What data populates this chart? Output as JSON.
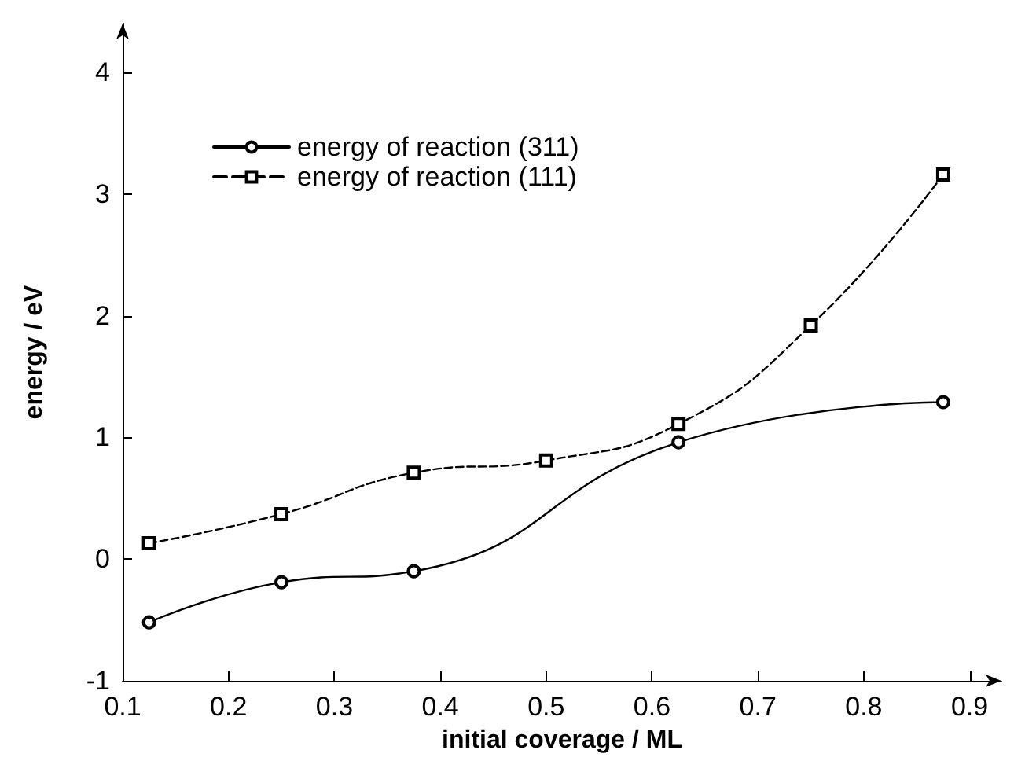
{
  "chart_data": {
    "type": "line",
    "xlabel": "initial coverage / ML",
    "ylabel": "energy / eV",
    "xlim": [
      0.1,
      0.93
    ],
    "xticks": [
      0.1,
      0.2,
      0.3,
      0.4,
      0.5,
      0.6,
      0.7,
      0.8,
      0.9
    ],
    "ylim": [
      -1,
      4.4
    ],
    "yticks": [
      -1,
      0,
      1,
      2,
      3,
      4
    ],
    "grid": false,
    "legend": "top left",
    "series": [
      {
        "name": "energy of reaction (311)",
        "color": "#000000",
        "marker": "circle",
        "line_style": "solid",
        "x": [
          0.125,
          0.25,
          0.375,
          0.625,
          0.875
        ],
        "values": [
          -0.52,
          -0.19,
          -0.1,
          0.96,
          1.29
        ]
      },
      {
        "name": "energy of reaction (111)",
        "color": "#000000",
        "marker": "square",
        "line_style": "dashed",
        "x": [
          0.125,
          0.25,
          0.375,
          0.5,
          0.625,
          0.75,
          0.875
        ],
        "values": [
          0.13,
          0.37,
          0.71,
          0.81,
          1.11,
          1.92,
          3.16
        ]
      }
    ]
  }
}
